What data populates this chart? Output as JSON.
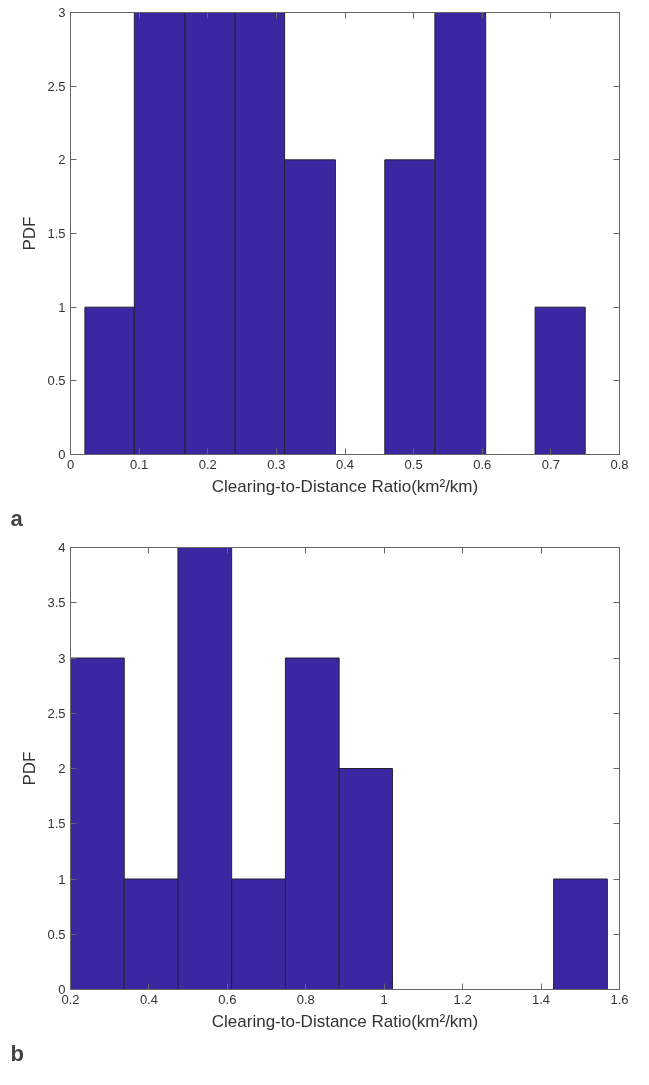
{
  "chart_data": [
    {
      "type": "histogram",
      "xlabel": "Clearing-to-Distance Ratio(km²/km)",
      "ylabel": "PDF",
      "annotations": [
        "a"
      ],
      "bins": [
        0.021,
        0.093,
        0.167,
        0.24,
        0.312,
        0.386,
        0.458,
        0.531,
        0.605,
        0.677,
        0.75
      ],
      "values": [
        1,
        3,
        3,
        3,
        2,
        0,
        2,
        3,
        0,
        1
      ],
      "color": "#3c27a3",
      "xlim": [
        0,
        0.8
      ],
      "xticks": [
        0,
        0.1,
        0.2,
        0.3,
        0.4,
        0.5,
        0.6,
        0.7,
        0.8
      ],
      "ylim": [
        0,
        3
      ],
      "yticks": [
        0,
        0.5,
        1,
        1.5,
        2,
        2.5,
        3
      ],
      "grid": false
    },
    {
      "type": "histogram",
      "xlabel": "Clearing-to-Distance Ratio(km²/km)",
      "ylabel": "PDF",
      "annotations": [
        "b"
      ],
      "bins": [
        0.2,
        0.337,
        0.474,
        0.611,
        0.748,
        0.885,
        1.021,
        1.158,
        1.295,
        1.432,
        1.569
      ],
      "values": [
        3,
        1,
        4,
        1,
        3,
        2,
        0,
        0,
        0,
        1
      ],
      "color": "#3c27a3",
      "xlim": [
        0.2,
        1.6
      ],
      "xticks": [
        0.2,
        0.4,
        0.6,
        0.8,
        1,
        1.2,
        1.4,
        1.6
      ],
      "ylim": [
        0,
        4
      ],
      "yticks": [
        0,
        0.5,
        1,
        1.5,
        2,
        2.5,
        3,
        3.5,
        4
      ],
      "grid": false
    }
  ]
}
